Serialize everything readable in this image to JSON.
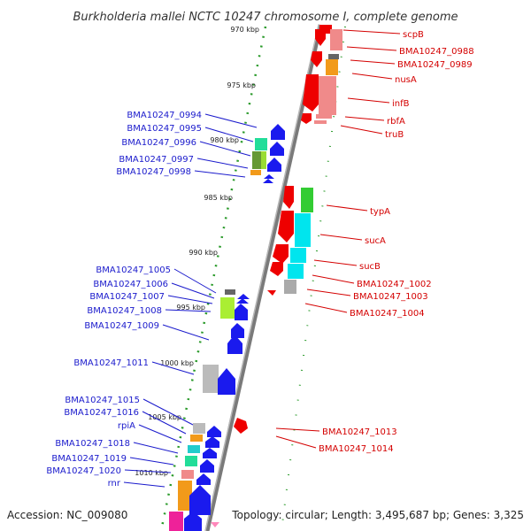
{
  "title": "Burkholderia mallei NCTC 10247 chromosome I, complete genome",
  "footer": {
    "accession": "Accession: NC_009080",
    "topology": "Topology: circular; Length: 3,495,687 bp; Genes: 3,325"
  },
  "colors": {
    "minus_label": "#1a1acc",
    "plus_label": "#d40000",
    "backbone": "#888888",
    "ruler": "#2a9a2a"
  },
  "ruler_ticks": [
    "970 kbp",
    "975 kbp",
    "980 kbp",
    "985 kbp",
    "990 kbp",
    "995 kbp",
    "1000 kbp",
    "1005 kbp",
    "1010 kbp"
  ],
  "minus_labels": [
    "BMA10247_0994",
    "BMA10247_0995",
    "BMA10247_0996",
    "BMA10247_0997",
    "BMA10247_0998",
    "BMA10247_1005",
    "BMA10247_1006",
    "BMA10247_1007",
    "BMA10247_1008",
    "BMA10247_1009",
    "BMA10247_1011",
    "BMA10247_1015",
    "BMA10247_1016",
    "rpiA",
    "BMA10247_1018",
    "BMA10247_1019",
    "BMA10247_1020",
    "rnr"
  ],
  "plus_labels": [
    "scpB",
    "BMA10247_0988",
    "BMA10247_0989",
    "nusA",
    "infB",
    "rbfA",
    "truB",
    "typA",
    "sucA",
    "sucB",
    "BMA10247_1002",
    "BMA10247_1003",
    "BMA10247_1004",
    "BMA10247_1013",
    "BMA10247_1014"
  ]
}
